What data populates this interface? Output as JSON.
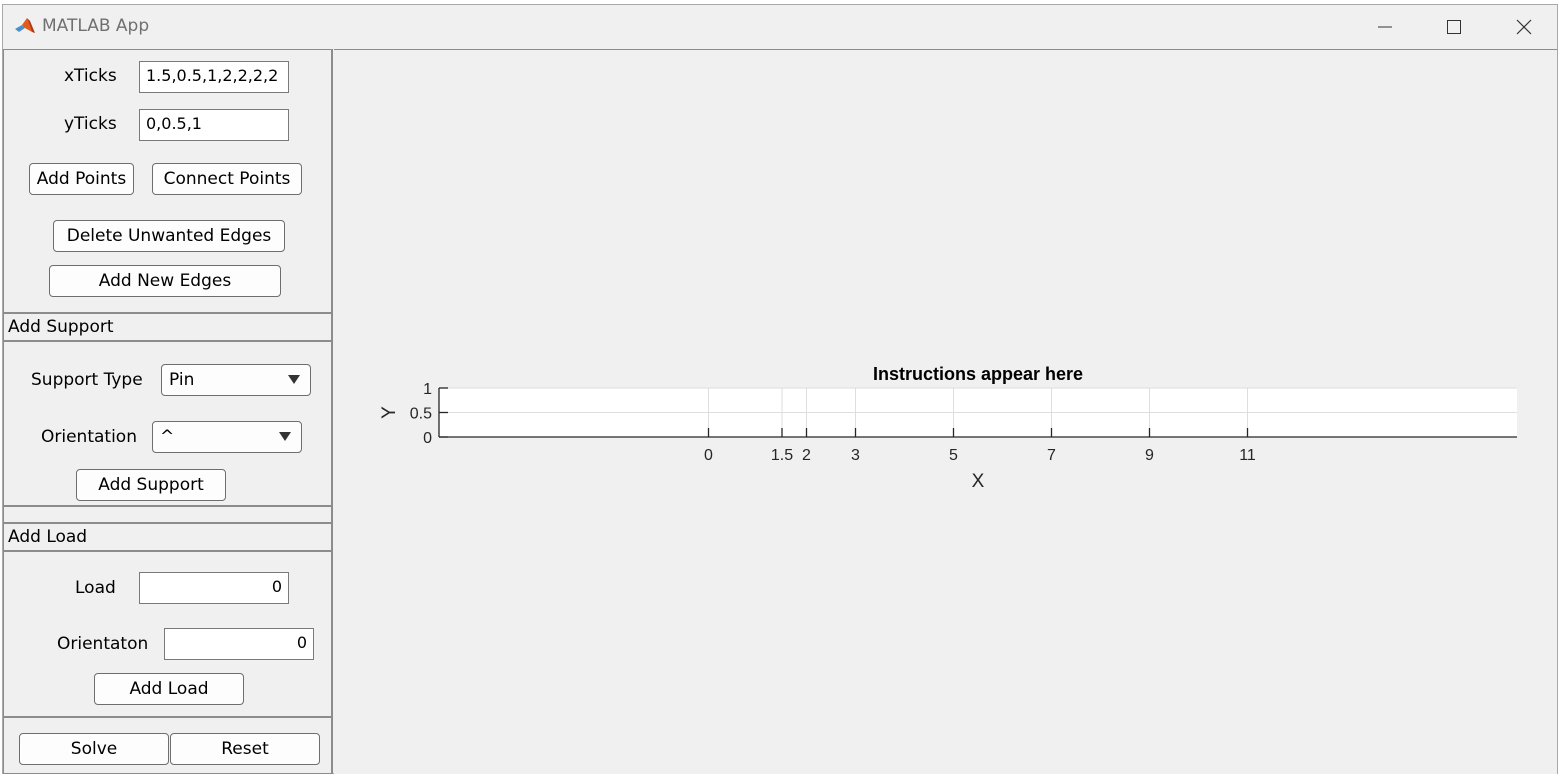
{
  "window": {
    "title": "MATLAB App",
    "icon": "matlab-logo-icon"
  },
  "left_panel": {
    "xticks_label": "xTicks",
    "xticks_value": "1.5,0.5,1,2,2,2,2",
    "yticks_label": "yTicks",
    "yticks_value": "0,0.5,1",
    "add_points": "Add Points",
    "connect_points": "Connect Points",
    "delete_edges": "Delete Unwanted Edges",
    "add_edges": "Add New Edges",
    "support": {
      "header": "Add Support",
      "type_label": "Support Type",
      "type_value": "Pin",
      "orientation_label": "Orientation",
      "orientation_value": "^",
      "button": "Add Support"
    },
    "load": {
      "header": "Add Load",
      "load_label": "Load",
      "load_value": "0",
      "orientation_label": "Orientaton",
      "orientation_value": "0",
      "button": "Add Load"
    },
    "solve": "Solve",
    "reset": "Reset"
  },
  "chart_data": {
    "type": "line",
    "title": "Instructions appear here",
    "xlabel": "X",
    "ylabel": "Y",
    "x_ticks": [
      0,
      1.5,
      2,
      3,
      5,
      7,
      9,
      11
    ],
    "x_tick_labels": [
      "0",
      "1.5",
      "2",
      "3",
      "5",
      "7",
      "9",
      "11"
    ],
    "y_ticks": [
      0,
      0.5,
      1
    ],
    "y_tick_labels": [
      "0",
      "0.5",
      "1"
    ],
    "xlim": [
      -5.5,
      16.5
    ],
    "ylim": [
      0,
      1
    ],
    "grid": true,
    "series": []
  }
}
